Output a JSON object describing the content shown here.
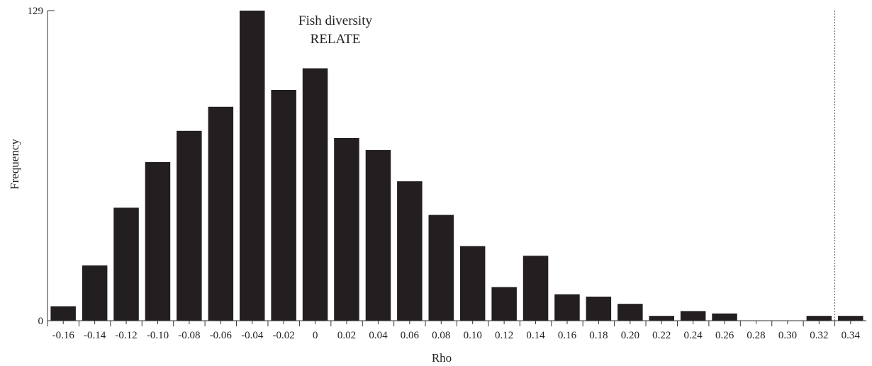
{
  "chart_data": {
    "type": "bar",
    "title": [
      "Fish diversity",
      "RELATE"
    ],
    "xlabel": "Rho",
    "ylabel": "Frequency",
    "ylim": [
      0,
      129
    ],
    "yticks": [
      "0",
      "129"
    ],
    "xticks": [
      "-0.16",
      "-0.14",
      "-0.12",
      "-0.10",
      "-0.08",
      "-0.06",
      "-0.04",
      "-0.02",
      "0",
      "0.02",
      "0.04",
      "0.06",
      "0.08",
      "0.10",
      "0.12",
      "0.14",
      "0.16",
      "0.18",
      "0.20",
      "0.22",
      "0.24",
      "0.26",
      "0.28",
      "0.30",
      "0.32",
      "0.34"
    ],
    "x": [
      -0.16,
      -0.14,
      -0.12,
      -0.1,
      -0.08,
      -0.06,
      -0.04,
      -0.02,
      0,
      0.02,
      0.04,
      0.06,
      0.08,
      0.1,
      0.12,
      0.14,
      0.16,
      0.18,
      0.2,
      0.22,
      0.24,
      0.26,
      0.28,
      0.3,
      0.32,
      0.34
    ],
    "values": [
      6,
      23,
      47,
      66,
      79,
      89,
      129,
      96,
      105,
      76,
      71,
      58,
      44,
      31,
      14,
      27,
      11,
      10,
      7,
      2,
      4,
      3,
      0,
      0,
      2,
      2
    ],
    "reference_line_x": 0.33,
    "grid": false
  }
}
